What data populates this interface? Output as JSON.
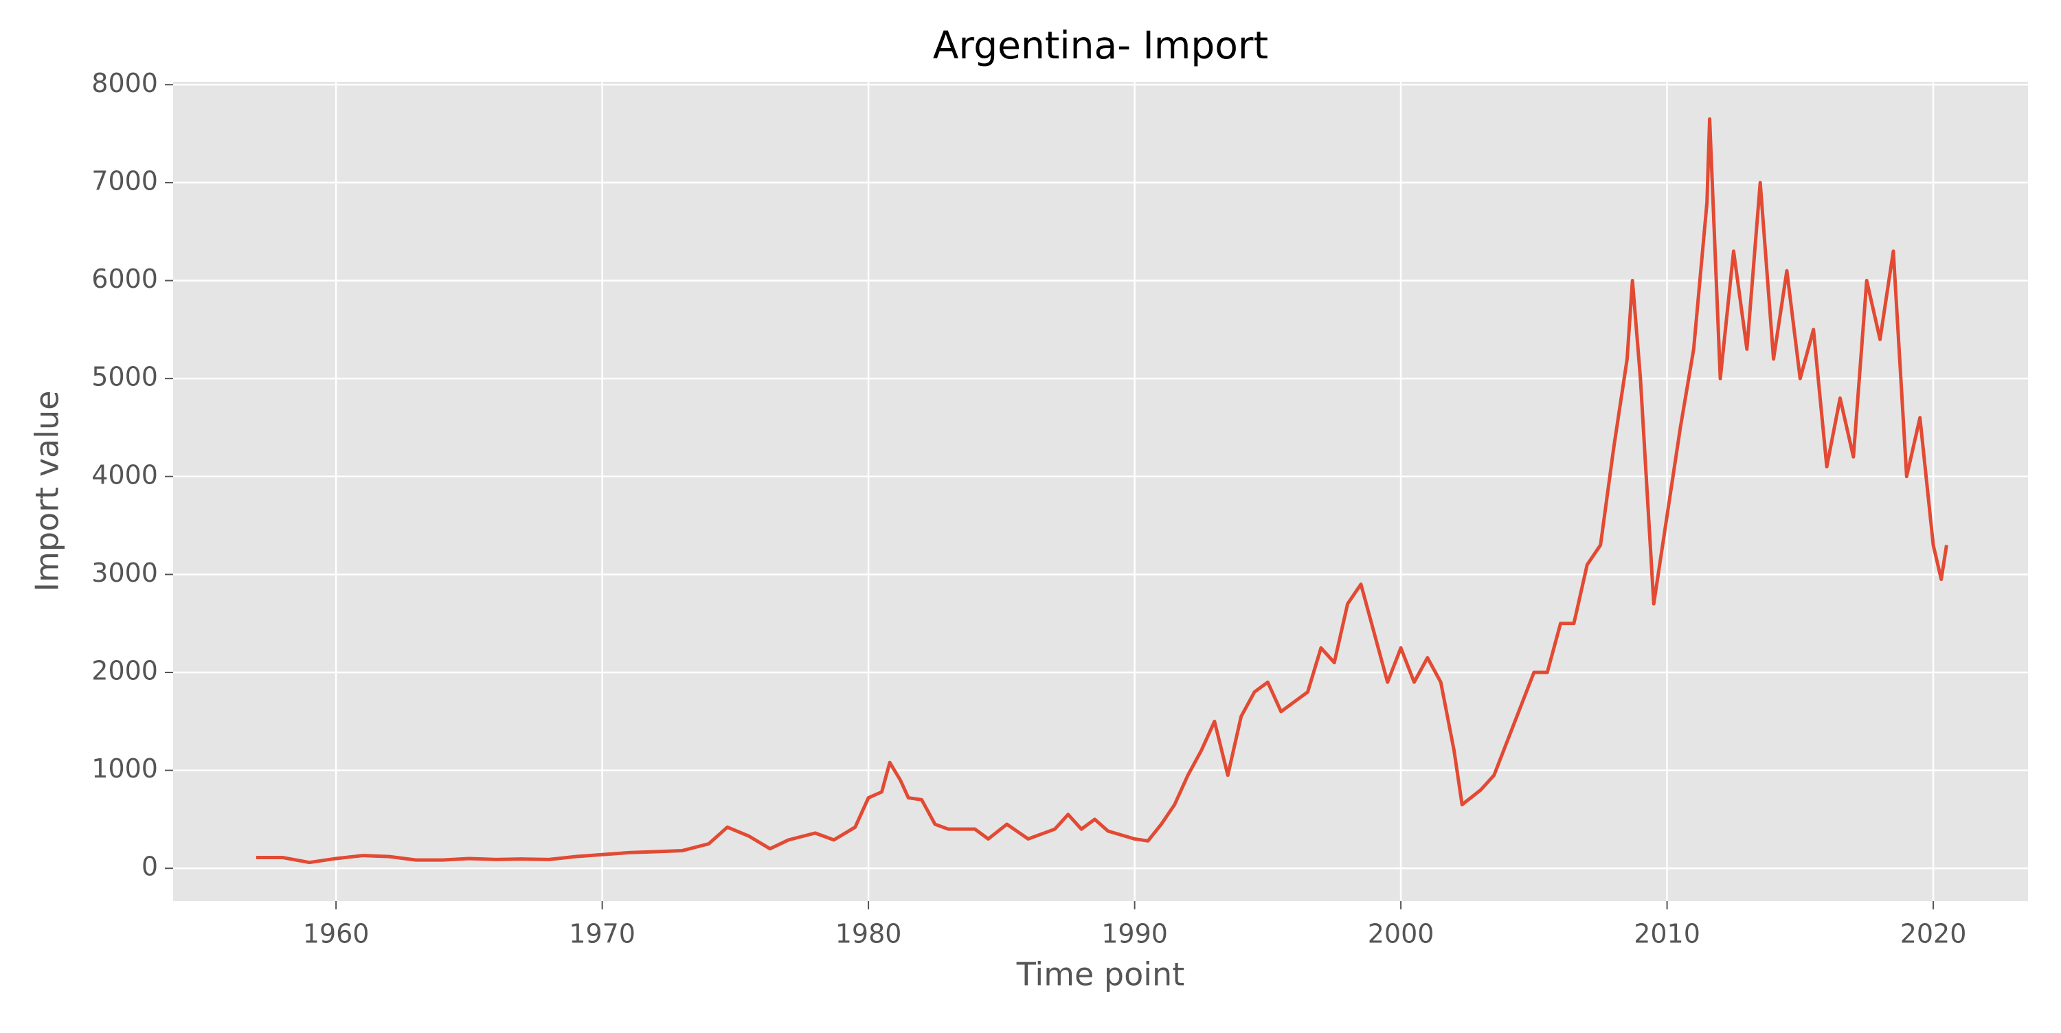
{
  "chart_data": {
    "type": "line",
    "title": "Argentina- Import",
    "x_label": "Time point",
    "y_label": "Import value",
    "x": [
      1957,
      1958,
      1959,
      1960,
      1961,
      1962,
      1963,
      1964,
      1965,
      1966,
      1967,
      1968,
      1969,
      1970,
      1971,
      1972,
      1973,
      1974,
      1974.7,
      1975.5,
      1976.3,
      1977,
      1978,
      1978.7,
      1979.5,
      1980,
      1980.5,
      1980.8,
      1981.2,
      1981.5,
      1982,
      1982.5,
      1983,
      1984,
      1984.5,
      1985.2,
      1986,
      1987,
      1987.5,
      1988,
      1988.5,
      1989,
      1990,
      1990.5,
      1991,
      1991.5,
      1992,
      1992.5,
      1993,
      1993.5,
      1994,
      1994.5,
      1995,
      1995.5,
      1996,
      1996.5,
      1997,
      1997.5,
      1998,
      1998.5,
      1999,
      1999.5,
      2000,
      2000.5,
      2001,
      2001.5,
      2002,
      2002.3,
      2003,
      2003.5,
      2004,
      2004.5,
      2005,
      2005.5,
      2006,
      2006.5,
      2007,
      2007.5,
      2008,
      2008.5,
      2008.7,
      2009,
      2009.5,
      2010,
      2010.5,
      2011,
      2011.5,
      2011.6,
      2012,
      2012.5,
      2013,
      2013.5,
      2014,
      2014.5,
      2015,
      2015.5,
      2016,
      2016.5,
      2017,
      2017.5,
      2018,
      2018.5,
      2019,
      2019.5,
      2020,
      2020.3,
      2020.5
    ],
    "series": [
      {
        "name": "Import",
        "color": "#e24a33",
        "values": [
          110,
          110,
          60,
          100,
          130,
          120,
          85,
          85,
          100,
          90,
          95,
          90,
          120,
          140,
          160,
          170,
          180,
          250,
          420,
          330,
          200,
          290,
          360,
          290,
          420,
          720,
          780,
          1080,
          900,
          720,
          700,
          450,
          400,
          400,
          300,
          450,
          300,
          400,
          550,
          400,
          500,
          380,
          300,
          280,
          450,
          650,
          950,
          1200,
          1500,
          950,
          1550,
          1800,
          1900,
          1600,
          1700,
          1800,
          2250,
          2100,
          2700,
          2900,
          2400,
          1900,
          2250,
          1900,
          2150,
          1900,
          1200,
          650,
          800,
          950,
          1300,
          1650,
          2000,
          2000,
          2500,
          2500,
          3100,
          3300,
          4300,
          5200,
          6000,
          5000,
          2700,
          3600,
          4500,
          5300,
          6800,
          7650,
          5000,
          6300,
          5300,
          7000,
          5200,
          6100,
          5000,
          5500,
          4100,
          4800,
          4200,
          6000,
          5400,
          6300,
          4000,
          4600,
          3300,
          2950,
          3300
        ]
      }
    ],
    "xlim": [
      1953.88,
      2023.56
    ],
    "ylim": [
      -335,
      8030
    ],
    "xticks": [
      1960,
      1970,
      1980,
      1990,
      2000,
      2010,
      2020
    ],
    "yticks": [
      0,
      1000,
      2000,
      3000,
      4000,
      5000,
      6000,
      7000,
      8000
    ],
    "grid": true
  }
}
